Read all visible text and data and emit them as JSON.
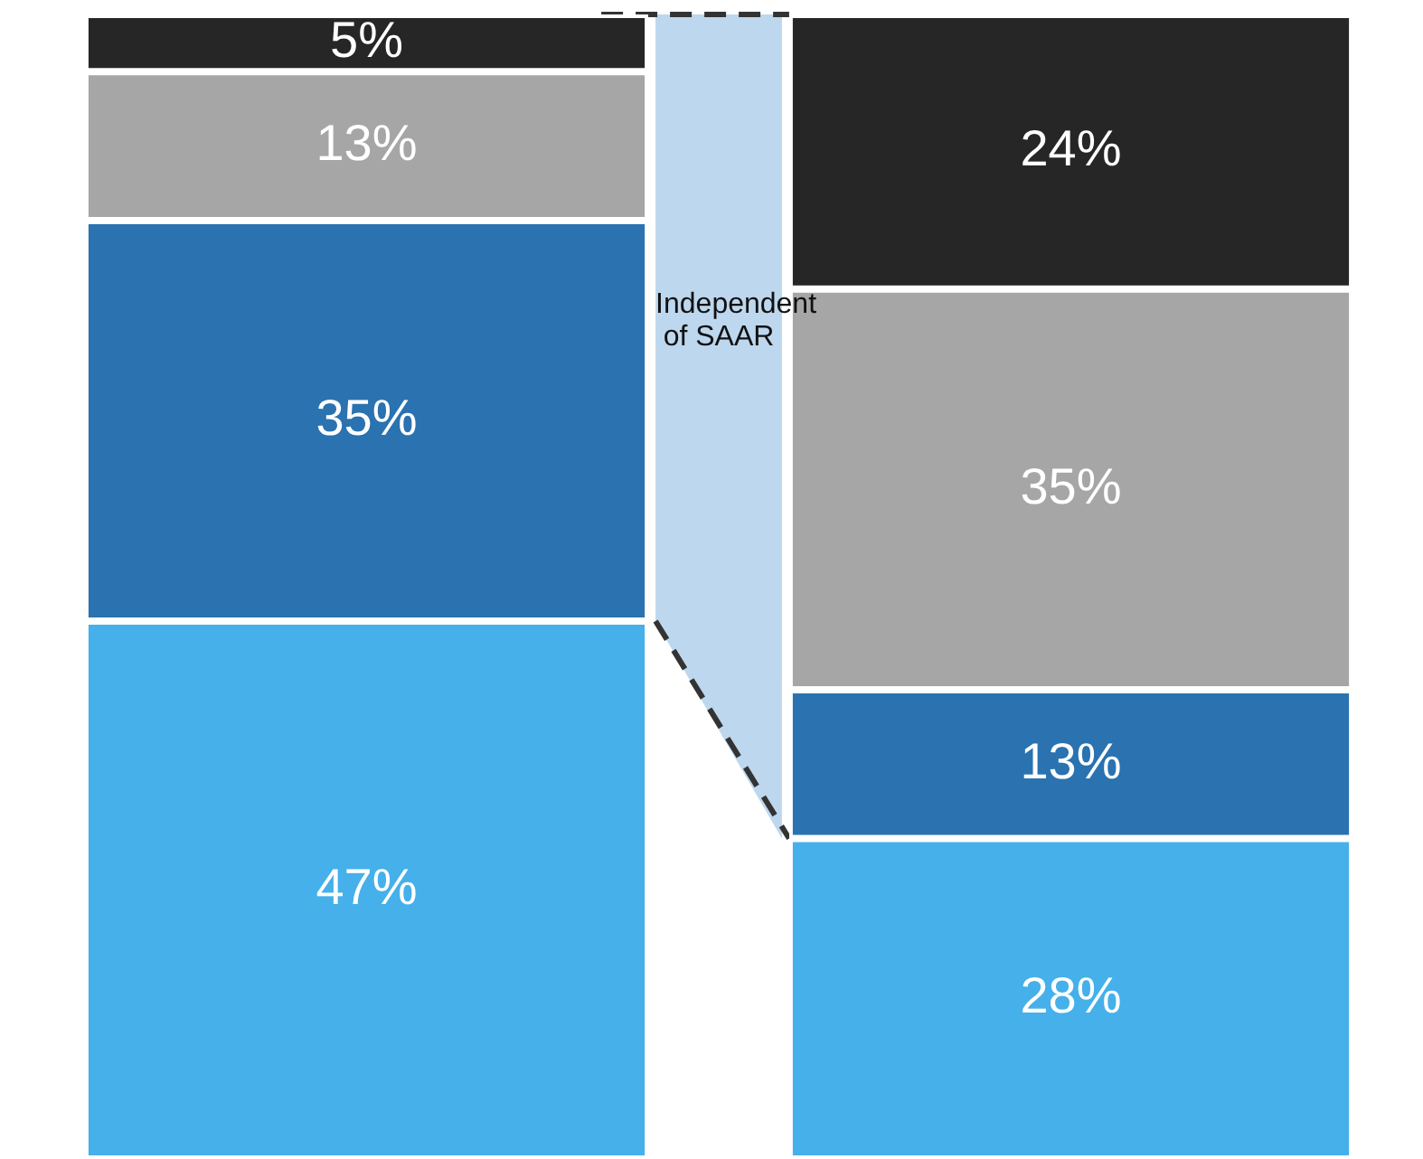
{
  "chart_data": {
    "type": "bar",
    "stacked": true,
    "categories": [
      null,
      null
    ],
    "legend": false,
    "series": [
      {
        "color": "#45b0ea",
        "values": [
          47,
          28
        ],
        "value_labels": [
          "47%",
          "28%"
        ]
      },
      {
        "color": "#2a72b0",
        "values": [
          35,
          13
        ],
        "value_labels": [
          "35%",
          "13%"
        ]
      },
      {
        "color": "#a6a6a6",
        "values": [
          13,
          35
        ],
        "value_labels": [
          "13%",
          "35%"
        ]
      },
      {
        "color": "#262626",
        "values": [
          5,
          24
        ],
        "value_labels": [
          "5%",
          "24%"
        ]
      }
    ],
    "annotations": [
      "Independent of SAAR"
    ]
  }
}
